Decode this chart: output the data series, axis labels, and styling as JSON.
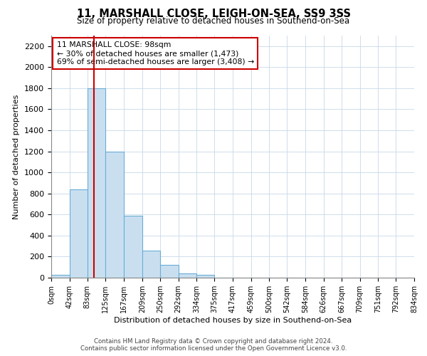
{
  "title": "11, MARSHALL CLOSE, LEIGH-ON-SEA, SS9 3SS",
  "subtitle": "Size of property relative to detached houses in Southend-on-Sea",
  "xlabel": "Distribution of detached houses by size in Southend-on-Sea",
  "ylabel": "Number of detached properties",
  "bar_color": "#c9dff0",
  "bar_edge_color": "#6aadd5",
  "bin_edges": [
    0,
    42,
    83,
    125,
    167,
    209,
    250,
    292,
    334,
    375,
    417,
    459,
    500,
    542,
    584,
    626,
    667,
    709,
    751,
    792,
    834
  ],
  "bin_labels": [
    "0sqm",
    "42sqm",
    "83sqm",
    "125sqm",
    "167sqm",
    "209sqm",
    "250sqm",
    "292sqm",
    "334sqm",
    "375sqm",
    "417sqm",
    "459sqm",
    "500sqm",
    "542sqm",
    "584sqm",
    "626sqm",
    "667sqm",
    "709sqm",
    "751sqm",
    "792sqm",
    "834sqm"
  ],
  "bar_heights": [
    25,
    840,
    1800,
    1200,
    590,
    255,
    125,
    40,
    25,
    0,
    0,
    0,
    0,
    0,
    0,
    0,
    0,
    0,
    0,
    0
  ],
  "ylim": [
    0,
    2300
  ],
  "yticks": [
    0,
    200,
    400,
    600,
    800,
    1000,
    1200,
    1400,
    1600,
    1800,
    2000,
    2200
  ],
  "property_line_x": 98,
  "property_line_color": "#cc0000",
  "annotation_title": "11 MARSHALL CLOSE: 98sqm",
  "annotation_line1": "← 30% of detached houses are smaller (1,473)",
  "annotation_line2": "69% of semi-detached houses are larger (3,408) →",
  "footer_line1": "Contains HM Land Registry data © Crown copyright and database right 2024.",
  "footer_line2": "Contains public sector information licensed under the Open Government Licence v3.0.",
  "background_color": "#ffffff",
  "grid_color": "#c8d8e8"
}
